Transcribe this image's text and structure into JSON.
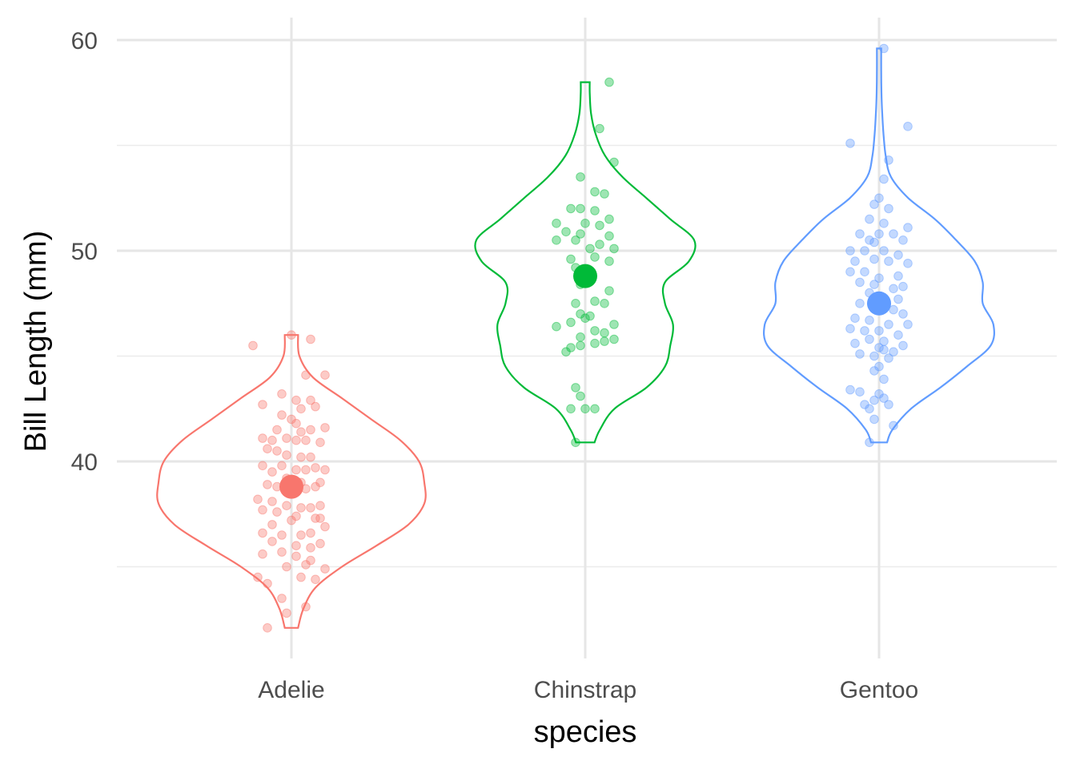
{
  "chart_data": {
    "type": "violin",
    "title": "",
    "xlabel": "species",
    "ylabel": "Bill Length (mm)",
    "ylim": [
      31.2,
      60.5
    ],
    "yticks": [
      40,
      50,
      60
    ],
    "grid": true,
    "legend": "none",
    "categories": [
      "Adelie",
      "Chinstrap",
      "Gentoo"
    ],
    "series": [
      {
        "name": "Adelie",
        "color": "#F8766D",
        "mean": 38.8,
        "min": 32.1,
        "max": 46.0,
        "density": [
          [
            32.1,
            0.25
          ],
          [
            33,
            0.45
          ],
          [
            34,
            0.9
          ],
          [
            35,
            1.9
          ],
          [
            36,
            3.2
          ],
          [
            37,
            4.4
          ],
          [
            38,
            5.0
          ],
          [
            39,
            5.0
          ],
          [
            40,
            4.8
          ],
          [
            41,
            4.1
          ],
          [
            42,
            3.0
          ],
          [
            43,
            1.9
          ],
          [
            44,
            0.8
          ],
          [
            45,
            0.3
          ],
          [
            46,
            0.25
          ]
        ],
        "points": [
          [
            0,
            46.0
          ],
          [
            0.2,
            45.8
          ],
          [
            -0.4,
            45.5
          ],
          [
            0.15,
            44.1
          ],
          [
            0.35,
            44.1
          ],
          [
            -0.1,
            43.2
          ],
          [
            0.05,
            42.9
          ],
          [
            0.2,
            42.9
          ],
          [
            0.25,
            42.6
          ],
          [
            -0.3,
            42.7
          ],
          [
            0.1,
            42.5
          ],
          [
            -0.1,
            42.2
          ],
          [
            0.0,
            42.0
          ],
          [
            0.05,
            41.8
          ],
          [
            -0.15,
            41.5
          ],
          [
            0.1,
            41.4
          ],
          [
            0.2,
            41.5
          ],
          [
            0.35,
            41.6
          ],
          [
            -0.3,
            41.1
          ],
          [
            -0.2,
            41.0
          ],
          [
            -0.05,
            41.1
          ],
          [
            0.05,
            41.0
          ],
          [
            0.15,
            41.0
          ],
          [
            0.3,
            40.9
          ],
          [
            -0.25,
            40.6
          ],
          [
            -0.15,
            40.5
          ],
          [
            -0.05,
            40.3
          ],
          [
            0.1,
            40.2
          ],
          [
            0.2,
            40.2
          ],
          [
            -0.3,
            39.8
          ],
          [
            -0.1,
            39.8
          ],
          [
            0.05,
            39.6
          ],
          [
            0.15,
            39.6
          ],
          [
            0.25,
            39.7
          ],
          [
            0.35,
            39.6
          ],
          [
            -0.2,
            39.5
          ],
          [
            -0.05,
            39.2
          ],
          [
            0.1,
            39.0
          ],
          [
            0.3,
            39.0
          ],
          [
            -0.25,
            38.9
          ],
          [
            -0.15,
            38.8
          ],
          [
            0.0,
            38.6
          ],
          [
            0.15,
            38.7
          ],
          [
            0.25,
            38.8
          ],
          [
            -0.35,
            38.2
          ],
          [
            -0.2,
            38.1
          ],
          [
            -0.05,
            37.9
          ],
          [
            0.1,
            37.8
          ],
          [
            0.2,
            37.8
          ],
          [
            0.3,
            37.9
          ],
          [
            -0.3,
            37.7
          ],
          [
            -0.15,
            37.6
          ],
          [
            0.05,
            37.4
          ],
          [
            0.25,
            37.3
          ],
          [
            0.3,
            37.3
          ],
          [
            -0.2,
            37.0
          ],
          [
            0.0,
            37.2
          ],
          [
            0.35,
            36.9
          ],
          [
            -0.3,
            36.6
          ],
          [
            -0.1,
            36.5
          ],
          [
            0.1,
            36.5
          ],
          [
            0.2,
            36.6
          ],
          [
            -0.2,
            36.2
          ],
          [
            0.05,
            36.0
          ],
          [
            0.2,
            35.9
          ],
          [
            0.3,
            36.1
          ],
          [
            -0.3,
            35.6
          ],
          [
            -0.1,
            35.7
          ],
          [
            0.05,
            35.5
          ],
          [
            0.2,
            35.3
          ],
          [
            -0.05,
            35.0
          ],
          [
            0.15,
            35.1
          ],
          [
            0.35,
            34.9
          ],
          [
            -0.35,
            34.5
          ],
          [
            0.1,
            34.5
          ],
          [
            -0.25,
            34.2
          ],
          [
            0.25,
            34.4
          ],
          [
            -0.1,
            33.5
          ],
          [
            0.15,
            33.1
          ],
          [
            -0.05,
            32.8
          ],
          [
            -0.25,
            32.1
          ]
        ]
      },
      {
        "name": "Chinstrap",
        "color": "#00BA38",
        "mean": 48.8,
        "min": 40.9,
        "max": 58.0,
        "density": [
          [
            40.9,
            0.35
          ],
          [
            41.5,
            0.55
          ],
          [
            42.5,
            1.1
          ],
          [
            43.5,
            2.3
          ],
          [
            44.5,
            3.0
          ],
          [
            45.5,
            3.2
          ],
          [
            46.5,
            3.3
          ],
          [
            47.5,
            3.0
          ],
          [
            48.5,
            3.0
          ],
          [
            49.5,
            3.9
          ],
          [
            50.5,
            4.1
          ],
          [
            51.5,
            3.2
          ],
          [
            52.5,
            2.3
          ],
          [
            53.5,
            1.4
          ],
          [
            54.5,
            0.75
          ],
          [
            55.5,
            0.4
          ],
          [
            56.5,
            0.22
          ],
          [
            57.5,
            0.17
          ],
          [
            58.0,
            0.17
          ]
        ],
        "points": [
          [
            0.25,
            58.0
          ],
          [
            0.15,
            55.8
          ],
          [
            0.3,
            54.2
          ],
          [
            -0.05,
            53.5
          ],
          [
            0.1,
            52.8
          ],
          [
            0.2,
            52.7
          ],
          [
            -0.15,
            52.0
          ],
          [
            -0.05,
            52.0
          ],
          [
            0.1,
            51.9
          ],
          [
            0.25,
            51.5
          ],
          [
            -0.3,
            51.3
          ],
          [
            0.0,
            51.3
          ],
          [
            0.15,
            51.2
          ],
          [
            -0.2,
            50.9
          ],
          [
            -0.05,
            50.8
          ],
          [
            0.25,
            50.7
          ],
          [
            -0.3,
            50.5
          ],
          [
            -0.1,
            50.5
          ],
          [
            0.15,
            50.3
          ],
          [
            0.05,
            50.1
          ],
          [
            0.3,
            50.1
          ],
          [
            -0.15,
            49.6
          ],
          [
            0.1,
            49.7
          ],
          [
            0.25,
            49.5
          ],
          [
            -0.1,
            49.2
          ],
          [
            0.05,
            48.8
          ],
          [
            -0.05,
            48.4
          ],
          [
            0.25,
            48.1
          ],
          [
            -0.1,
            47.5
          ],
          [
            0.1,
            47.6
          ],
          [
            0.2,
            47.5
          ],
          [
            -0.05,
            47.0
          ],
          [
            0.05,
            46.9
          ],
          [
            -0.15,
            46.6
          ],
          [
            0.0,
            46.8
          ],
          [
            0.3,
            46.5
          ],
          [
            -0.3,
            46.4
          ],
          [
            0.1,
            46.2
          ],
          [
            0.2,
            46.1
          ],
          [
            -0.05,
            45.9
          ],
          [
            0.3,
            45.8
          ],
          [
            -0.15,
            45.4
          ],
          [
            -0.05,
            45.5
          ],
          [
            0.1,
            45.6
          ],
          [
            0.2,
            45.7
          ],
          [
            -0.2,
            45.2
          ],
          [
            -0.1,
            43.5
          ],
          [
            -0.05,
            43.1
          ],
          [
            -0.15,
            42.5
          ],
          [
            0.0,
            42.5
          ],
          [
            0.1,
            42.5
          ],
          [
            -0.1,
            40.9
          ]
        ]
      },
      {
        "name": "Gentoo",
        "color": "#619CFF",
        "mean": 47.5,
        "min": 40.9,
        "max": 59.6,
        "density": [
          [
            40.9,
            0.3
          ],
          [
            41.5,
            0.5
          ],
          [
            42.5,
            1.2
          ],
          [
            43.5,
            2.3
          ],
          [
            44.5,
            3.3
          ],
          [
            45.5,
            4.2
          ],
          [
            46.5,
            4.3
          ],
          [
            47.5,
            3.9
          ],
          [
            48.5,
            3.9
          ],
          [
            49.5,
            3.6
          ],
          [
            50.5,
            2.9
          ],
          [
            51.5,
            2.1
          ],
          [
            52.5,
            1.1
          ],
          [
            53.5,
            0.45
          ],
          [
            54.5,
            0.25
          ],
          [
            55.5,
            0.17
          ],
          [
            56.5,
            0.12
          ],
          [
            57.5,
            0.09
          ],
          [
            58.5,
            0.08
          ],
          [
            59.6,
            0.08
          ]
        ],
        "points": [
          [
            0.05,
            59.6
          ],
          [
            0.3,
            55.9
          ],
          [
            -0.3,
            55.1
          ],
          [
            0.1,
            54.3
          ],
          [
            0.05,
            53.4
          ],
          [
            0.0,
            52.5
          ],
          [
            -0.05,
            52.2
          ],
          [
            0.1,
            52.0
          ],
          [
            -0.1,
            51.5
          ],
          [
            0.05,
            51.3
          ],
          [
            0.3,
            51.1
          ],
          [
            -0.2,
            50.8
          ],
          [
            0.0,
            50.8
          ],
          [
            0.15,
            50.8
          ],
          [
            -0.1,
            50.5
          ],
          [
            -0.05,
            50.4
          ],
          [
            0.25,
            50.5
          ],
          [
            -0.3,
            50.0
          ],
          [
            -0.15,
            50.0
          ],
          [
            0.05,
            50.0
          ],
          [
            0.2,
            49.8
          ],
          [
            -0.25,
            49.5
          ],
          [
            -0.05,
            49.6
          ],
          [
            0.1,
            49.5
          ],
          [
            0.3,
            49.4
          ],
          [
            -0.3,
            49.0
          ],
          [
            -0.15,
            49.0
          ],
          [
            0.0,
            48.7
          ],
          [
            0.2,
            48.8
          ],
          [
            -0.2,
            48.5
          ],
          [
            -0.05,
            48.4
          ],
          [
            0.15,
            48.2
          ],
          [
            0.25,
            48.3
          ],
          [
            -0.1,
            48.0
          ],
          [
            0.0,
            47.8
          ],
          [
            0.2,
            47.7
          ],
          [
            -0.2,
            47.5
          ],
          [
            -0.05,
            47.3
          ],
          [
            0.15,
            47.2
          ],
          [
            0.25,
            47.0
          ],
          [
            -0.25,
            46.8
          ],
          [
            -0.1,
            46.7
          ],
          [
            0.1,
            46.5
          ],
          [
            0.3,
            46.5
          ],
          [
            -0.3,
            46.3
          ],
          [
            -0.15,
            46.2
          ],
          [
            0.0,
            46.2
          ],
          [
            0.2,
            46.0
          ],
          [
            -0.1,
            45.8
          ],
          [
            0.05,
            45.7
          ],
          [
            0.25,
            45.5
          ],
          [
            -0.25,
            45.6
          ],
          [
            0.0,
            45.4
          ],
          [
            0.05,
            45.3
          ],
          [
            0.15,
            45.2
          ],
          [
            -0.2,
            45.1
          ],
          [
            -0.05,
            45.0
          ],
          [
            0.1,
            44.9
          ],
          [
            0.0,
            44.5
          ],
          [
            -0.05,
            44.3
          ],
          [
            0.05,
            43.9
          ],
          [
            -0.3,
            43.4
          ],
          [
            -0.2,
            43.3
          ],
          [
            0.0,
            43.2
          ],
          [
            0.05,
            43.0
          ],
          [
            -0.05,
            42.9
          ],
          [
            0.1,
            42.7
          ],
          [
            -0.15,
            42.7
          ],
          [
            -0.1,
            42.5
          ],
          [
            0.15,
            41.7
          ],
          [
            -0.05,
            42.0
          ],
          [
            -0.1,
            40.9
          ]
        ]
      }
    ]
  }
}
